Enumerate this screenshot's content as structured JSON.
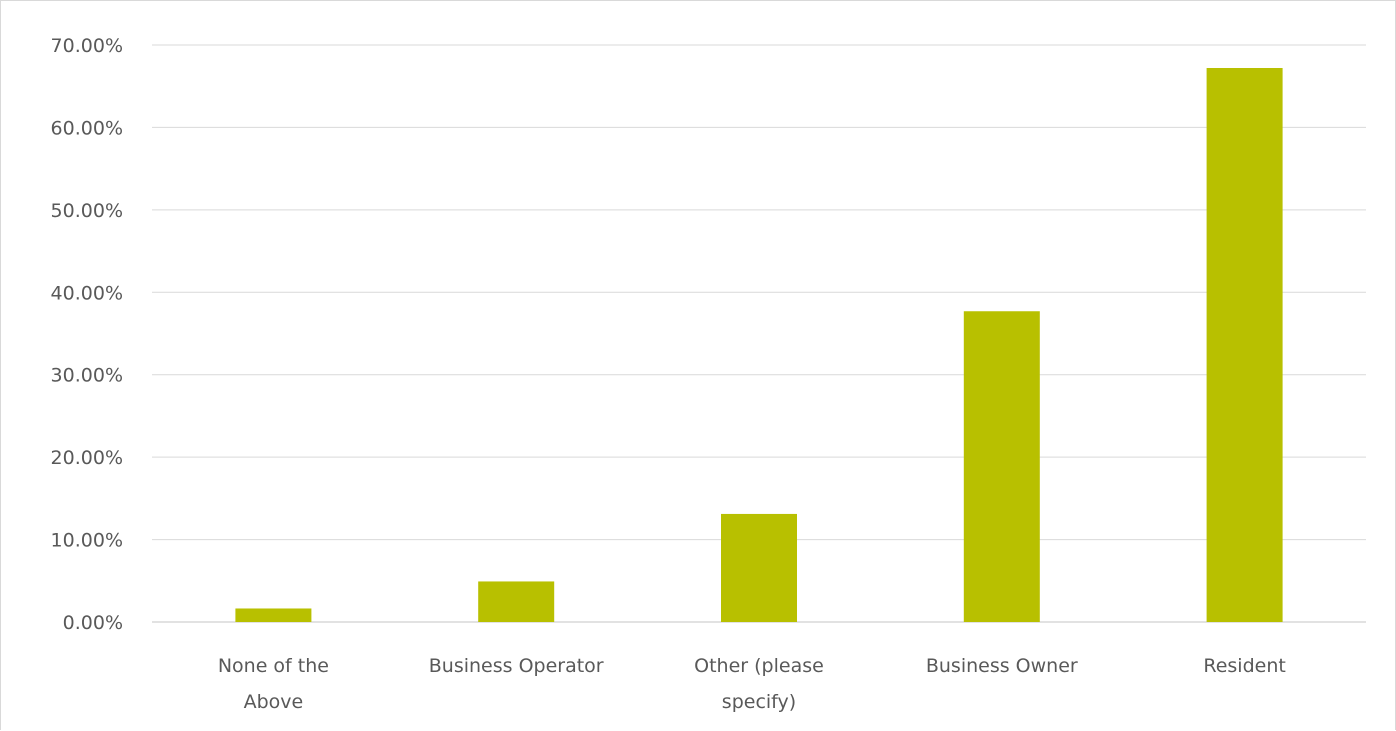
{
  "chart_data": {
    "type": "bar",
    "categories": [
      [
        "None of the",
        "Above"
      ],
      [
        "Business Operator"
      ],
      [
        "Other (please",
        "specify)"
      ],
      [
        "Business Owner"
      ],
      [
        "Resident"
      ]
    ],
    "values": [
      0.0164,
      0.0492,
      0.1311,
      0.377,
      0.6721
    ],
    "y_ticks": [
      "0.00%",
      "10.00%",
      "20.00%",
      "30.00%",
      "40.00%",
      "50.00%",
      "60.00%",
      "70.00%"
    ],
    "ylim": [
      0,
      0.7
    ],
    "grid": true,
    "legend": "none",
    "colors": {
      "bar": "#b8c000",
      "grid": "#d9d9d9",
      "text": "#595959"
    }
  }
}
